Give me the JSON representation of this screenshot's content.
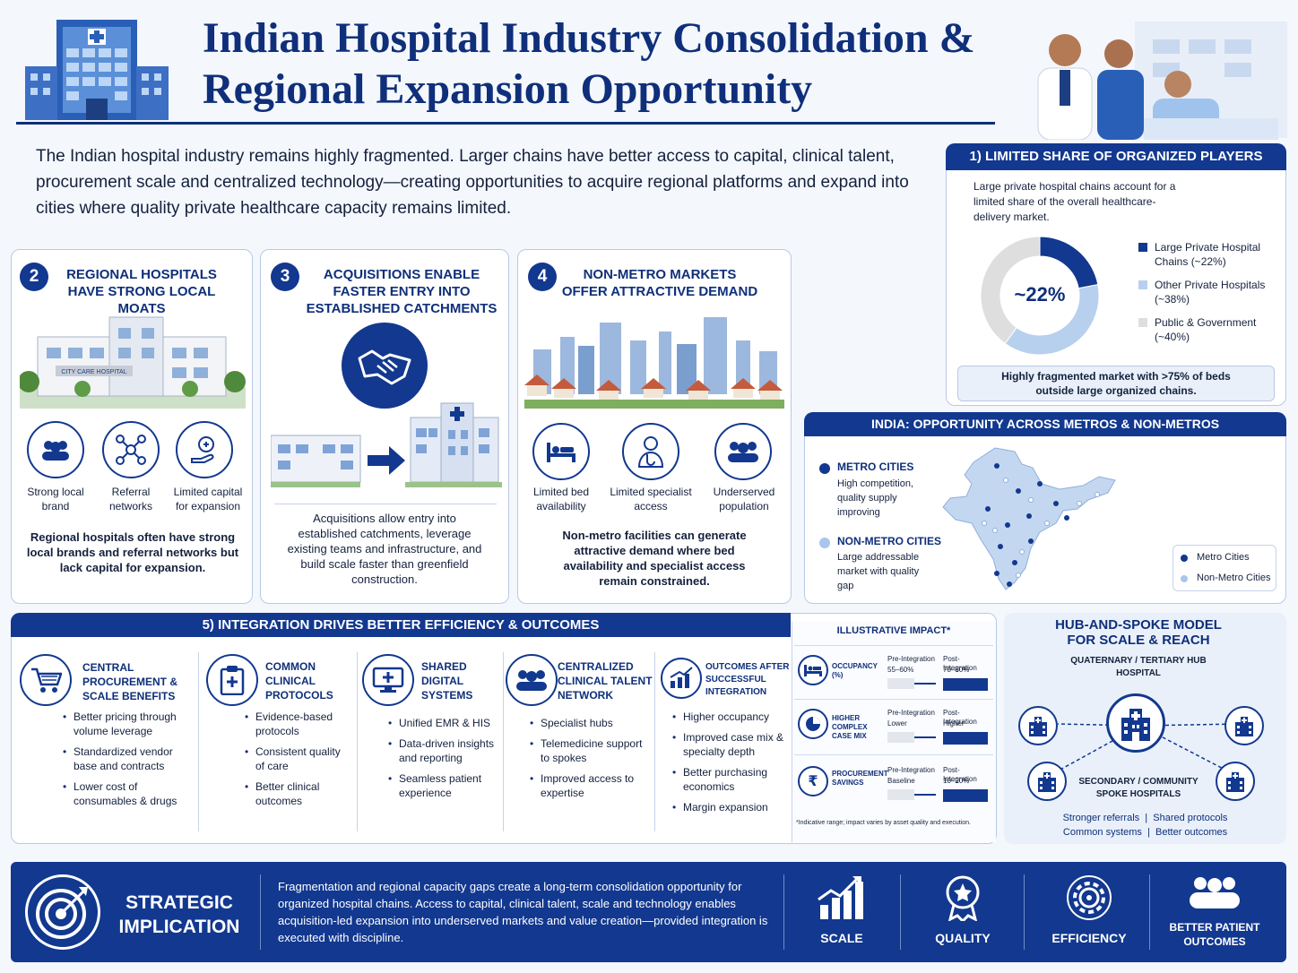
{
  "header": {
    "title_line1": "Indian Hospital Industry Consolidation &",
    "title_line2": "Regional Expansion Opportunity"
  },
  "intro": "The Indian hospital industry remains highly fragmented. Larger chains have better access to capital, clinical talent, procurement scale and centralized technology—creating opportunities to acquire regional platforms and expand into cities where quality private healthcare capacity remains limited.",
  "section1": {
    "title": "1) LIMITED SHARE OF ORGANIZED PLAYERS",
    "text": "Large private hospital chains account for a limited share of the overall healthcare-delivery market.",
    "center_label": "~22%",
    "legend": [
      {
        "label": "Large Private Hospital Chains (~22%)",
        "color": "#12388f"
      },
      {
        "label": "Other Private Hospitals (~38%)",
        "color": "#b7d0ee"
      },
      {
        "label": "Public & Government (~40%)",
        "color": "#dedede"
      }
    ],
    "note": "Highly fragmented market with >75% of beds outside large organized chains."
  },
  "chart_data": {
    "type": "pie",
    "categories": [
      "Large Private Hospital Chains",
      "Other Private Hospitals",
      "Public & Government"
    ],
    "values": [
      22,
      38,
      40
    ],
    "title": "",
    "colors": [
      "#12388f",
      "#b7d0ee",
      "#dedede"
    ]
  },
  "section2": {
    "num": "2",
    "title": "REGIONAL HOSPITALS HAVE STRONG LOCAL MOATS",
    "sign": "CITY CARE HOSPITAL",
    "icons": [
      {
        "label": "Strong local brand",
        "icon": "people-icon"
      },
      {
        "label": "Referral networks",
        "icon": "network-icon"
      },
      {
        "label": "Limited capital for expansion",
        "icon": "hand-plus-icon"
      }
    ],
    "text": "Regional hospitals often have strong local brands and referral networks but lack capital for expansion."
  },
  "section3": {
    "num": "3",
    "title": "ACQUISITIONS ENABLE FASTER ENTRY INTO ESTABLISHED CATCHMENTS",
    "text": "Acquisitions allow entry into established catchments, leverage existing teams and infrastructure, and build scale faster than greenfield construction."
  },
  "section4": {
    "num": "4",
    "title": "NON-METRO MARKETS OFFER ATTRACTIVE DEMAND",
    "icons": [
      {
        "label": "Limited bed availability",
        "icon": "bed-icon"
      },
      {
        "label": "Limited specialist access",
        "icon": "doctor-icon"
      },
      {
        "label": "Underserved population",
        "icon": "people-icon"
      }
    ],
    "text": "Non-metro facilities can generate attractive demand where bed availability and specialist access remain constrained."
  },
  "india": {
    "title": "INDIA: OPPORTUNITY ACROSS METROS & NON-METROS",
    "metro_title": "METRO CITIES",
    "metro_text": "High competition, quality supply improving",
    "nonmetro_title": "NON-METRO CITIES",
    "nonmetro_text": "Large addressable market with quality gap",
    "legend_metro": "Metro Cities",
    "legend_nonmetro": "Non-Metro Cities",
    "metro_color": "#12388f",
    "nonmetro_color": "#a9c6ec"
  },
  "section5": {
    "title": "5) INTEGRATION DRIVES BETTER EFFICIENCY & OUTCOMES",
    "columns": [
      {
        "title": "CENTRAL PROCUREMENT & SCALE BENEFITS",
        "icon": "cart-icon",
        "items": [
          "Better pricing through volume leverage",
          "Standardized vendor base and contracts",
          "Lower cost of consumables & drugs"
        ]
      },
      {
        "title": "COMMON CLINICAL PROTOCOLS",
        "icon": "clipboard-icon",
        "items": [
          "Evidence-based protocols",
          "Consistent quality of care",
          "Better clinical outcomes"
        ]
      },
      {
        "title": "SHARED DIGITAL SYSTEMS",
        "icon": "monitor-icon",
        "items": [
          "Unified EMR & HIS",
          "Data-driven insights and reporting",
          "Seamless patient experience"
        ]
      },
      {
        "title": "CENTRALIZED CLINICAL TALENT NETWORK",
        "icon": "people-icon",
        "items": [
          "Specialist hubs",
          "Telemedicine support to spokes",
          "Improved access to expertise"
        ]
      },
      {
        "title": "OUTCOMES AFTER SUCCESSFUL INTEGRATION",
        "icon": "growth-chart-icon",
        "items": [
          "Higher occupancy",
          "Improved case mix & specialty depth",
          "Better purchasing economics",
          "Margin expansion"
        ]
      }
    ]
  },
  "impact": {
    "title": "ILLUSTRATIVE IMPACT*",
    "rows": [
      {
        "label": "OCCUPANCY (%)",
        "icon": "bed-icon",
        "pre_label": "Pre-Integration",
        "pre_value": "55–60%",
        "post_label": "Post-Integration",
        "post_value": "70–80%"
      },
      {
        "label": "HIGHER COMPLEX CASE MIX",
        "icon": "pie-icon",
        "pre_label": "Pre-Integration",
        "pre_value": "Lower",
        "post_label": "Post-Integration",
        "post_value": "Higher"
      },
      {
        "label": "PROCUREMENT SAVINGS",
        "icon": "rupee-icon",
        "pre_label": "Pre-Integration",
        "pre_value": "Baseline",
        "post_label": "Post-Integration",
        "post_value": "10–20%"
      }
    ],
    "footnote": "*Indicative range; impact varies by asset quality and execution."
  },
  "hub": {
    "title": "HUB-AND-SPOKE MODEL FOR SCALE & REACH",
    "hub_label": "QUATERNARY / TERTIARY HUB HOSPITAL",
    "spoke_label": "SECONDARY / COMMUNITY SPOKE HOSPITALS",
    "benefits": [
      "Stronger referrals",
      "Shared protocols",
      "Common systems",
      "Better outcomes"
    ]
  },
  "strategic": {
    "title_line1": "STRATEGIC",
    "title_line2": "IMPLICATION",
    "text": "Fragmentation and regional capacity gaps create a long-term consolidation opportunity for organized hospital chains.  Access to capital, clinical talent, scale and technology enables acquisition-led expansion into underserved markets and value creation—provided integration is executed with discipline.",
    "pillars": [
      {
        "label": "SCALE",
        "icon": "bar-chart-icon"
      },
      {
        "label": "QUALITY",
        "icon": "medal-icon"
      },
      {
        "label": "EFFICIENCY",
        "icon": "gear-icon"
      },
      {
        "label": "BETTER PATIENT OUTCOMES",
        "icon": "people-icon"
      }
    ]
  }
}
